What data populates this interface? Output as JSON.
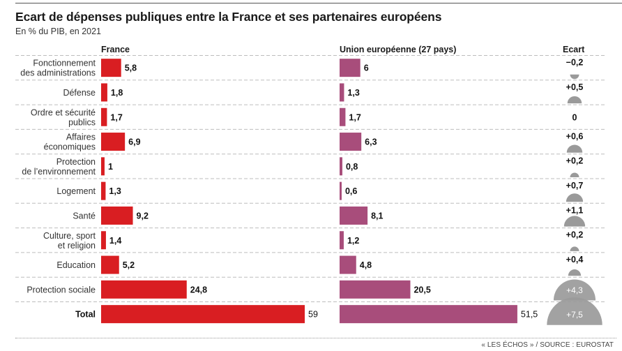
{
  "header": {
    "title": "Ecart de dépenses publiques entre la France et ses partenaires européens",
    "subtitle": "En % du PIB, en 2021"
  },
  "footer": {
    "source": "« LES ÉCHOS » / SOURCE : EUROSTAT"
  },
  "chart_data": {
    "type": "bar",
    "title": "Ecart de dépenses publiques entre la France et ses partenaires européens",
    "subtitle": "En % du PIB, en 2021",
    "orientation": "horizontal",
    "colors": {
      "france": "#d91e22",
      "ue": "#a84d7b",
      "ecart": "#9a9a9a"
    },
    "column_headers": {
      "france": "France",
      "ue": "Union européenne (27 pays)",
      "ecart": "Ecart"
    },
    "categories": [
      [
        "Fonctionnement",
        "des administrations"
      ],
      [
        "Défense"
      ],
      [
        "Ordre et sécurité",
        "publics"
      ],
      [
        "Affaires",
        "économiques"
      ],
      [
        "Protection",
        "de l’environnement"
      ],
      [
        "Logement"
      ],
      [
        "Santé"
      ],
      [
        "Culture, sport",
        "et religion"
      ],
      [
        "Education"
      ],
      [
        "Protection sociale"
      ],
      [
        "Total"
      ]
    ],
    "series": [
      {
        "name": "France",
        "values": [
          5.8,
          1.8,
          1.7,
          6.9,
          1,
          1.3,
          9.2,
          1.4,
          5.2,
          24.8,
          59
        ],
        "labels": [
          "5,8",
          "1,8",
          "1,7",
          "6,9",
          "1",
          "1,3",
          "9,2",
          "1,4",
          "5,2",
          "24,8",
          "59"
        ]
      },
      {
        "name": "Union européenne (27 pays)",
        "values": [
          6,
          1.3,
          1.7,
          6.3,
          0.8,
          0.6,
          8.1,
          1.2,
          4.8,
          20.5,
          51.5
        ],
        "labels": [
          "6",
          "1,3",
          "1,7",
          "6,3",
          "0,8",
          "0,6",
          "8,1",
          "1,2",
          "4,8",
          "20,5",
          "51,5"
        ]
      },
      {
        "name": "Ecart",
        "values": [
          -0.2,
          0.5,
          0,
          0.6,
          0.2,
          0.7,
          1.1,
          0.2,
          0.4,
          4.3,
          7.5
        ],
        "labels": [
          "−0,2",
          "+0,5",
          "0",
          "+0,6",
          "+0,2",
          "+0,7",
          "+1,1",
          "+0,2",
          "+0,4",
          "+4,3",
          "+7,5"
        ]
      }
    ],
    "xlabel": "",
    "ylabel": "",
    "grid": false,
    "legend": "column-headers-top"
  }
}
